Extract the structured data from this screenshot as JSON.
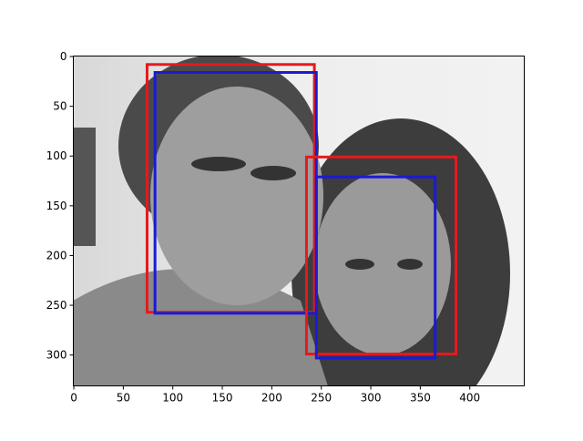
{
  "chart_data": {
    "type": "boxes",
    "xlim": [
      -0.5,
      455
    ],
    "ylim": [
      331,
      -0.5
    ],
    "xticks": [
      0,
      50,
      100,
      150,
      200,
      250,
      300,
      350,
      400
    ],
    "yticks": [
      0,
      50,
      100,
      150,
      200,
      250,
      300
    ],
    "boxes": [
      {
        "color": "#e41a1c",
        "x": [
          74,
          243
        ],
        "y": [
          8,
          257
        ]
      },
      {
        "color": "#1a1ad6",
        "x": [
          82,
          245
        ],
        "y": [
          16,
          258
        ]
      },
      {
        "color": "#e41a1c",
        "x": [
          235,
          386
        ],
        "y": [
          101,
          299
        ]
      },
      {
        "color": "#1a1ad6",
        "x": [
          245,
          365
        ],
        "y": [
          121,
          303
        ]
      }
    ]
  }
}
